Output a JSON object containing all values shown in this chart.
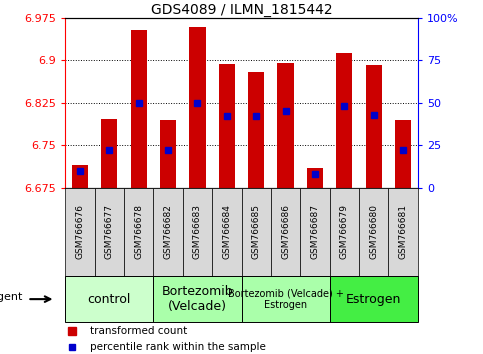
{
  "title": "GDS4089 / ILMN_1815442",
  "samples": [
    "GSM766676",
    "GSM766677",
    "GSM766678",
    "GSM766682",
    "GSM766683",
    "GSM766684",
    "GSM766685",
    "GSM766686",
    "GSM766687",
    "GSM766679",
    "GSM766680",
    "GSM766681"
  ],
  "bar_values": [
    6.715,
    6.797,
    6.953,
    6.795,
    6.958,
    6.893,
    6.88,
    6.895,
    6.71,
    6.912,
    6.892,
    6.795
  ],
  "percentile_values": [
    10,
    22,
    50,
    22,
    50,
    42,
    42,
    45,
    8,
    48,
    43,
    22
  ],
  "bar_base": 6.675,
  "ylim_left": [
    6.675,
    6.975
  ],
  "ylim_right": [
    0,
    100
  ],
  "yticks_left": [
    6.675,
    6.75,
    6.825,
    6.9,
    6.975
  ],
  "yticks_right": [
    0,
    25,
    50,
    75,
    100
  ],
  "ytick_labels_right": [
    "0",
    "25",
    "50",
    "75",
    "100%"
  ],
  "bar_color": "#cc0000",
  "dot_color": "#0000cc",
  "groups": [
    {
      "label": "control",
      "start": 0,
      "end": 3,
      "color": "#ccffcc",
      "fontsize": 9
    },
    {
      "label": "Bortezomib\n(Velcade)",
      "start": 3,
      "end": 6,
      "color": "#aaffaa",
      "fontsize": 9
    },
    {
      "label": "Bortezomib (Velcade) +\nEstrogen",
      "start": 6,
      "end": 9,
      "color": "#aaffaa",
      "fontsize": 7
    },
    {
      "label": "Estrogen",
      "start": 9,
      "end": 12,
      "color": "#44ee44",
      "fontsize": 9
    }
  ],
  "agent_label": "agent",
  "legend_items": [
    {
      "label": "transformed count",
      "color": "#cc0000"
    },
    {
      "label": "percentile rank within the sample",
      "color": "#0000cc"
    }
  ],
  "figsize": [
    4.83,
    3.54
  ],
  "dpi": 100
}
